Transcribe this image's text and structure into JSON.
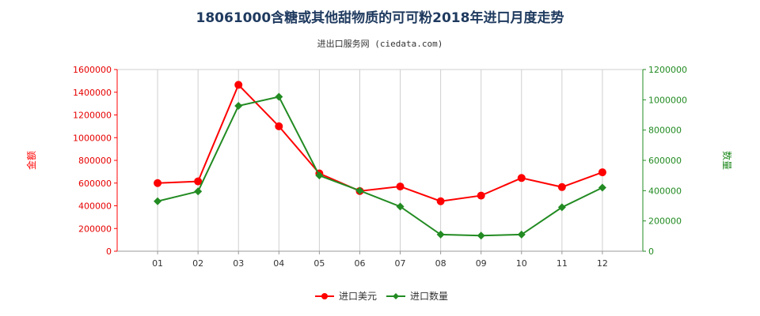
{
  "title": "18061000含糖或其他甜物质的可可粉2018年进口月度走势",
  "subtitle": "进出口服务网 (ciedata.com)",
  "colors": {
    "series_usd": "#ff0000",
    "series_qty": "#228b22"
  },
  "chart_data": {
    "type": "line",
    "categories": [
      "01",
      "02",
      "03",
      "04",
      "05",
      "06",
      "07",
      "08",
      "09",
      "10",
      "11",
      "12"
    ],
    "ylabel_left": "金额",
    "ylabel_right": "数量",
    "ylim_left": [
      0,
      1600000
    ],
    "ylim_right": [
      0,
      1200000
    ],
    "yticks_left": [
      "0",
      "200000",
      "400000",
      "600000",
      "800000",
      "1000000",
      "1200000",
      "1400000",
      "1600000"
    ],
    "yticks_right": [
      "0",
      "200000",
      "400000",
      "600000",
      "800000",
      "1000000",
      "1200000"
    ],
    "grid": "vertical",
    "legend_position": "bottom",
    "series": [
      {
        "name": "进口美元",
        "axis": "left",
        "values": [
          600000,
          615000,
          1465000,
          1100000,
          685000,
          530000,
          570000,
          440000,
          490000,
          645000,
          565000,
          695000
        ]
      },
      {
        "name": "进口数量",
        "axis": "right",
        "values": [
          330000,
          395000,
          960000,
          1020000,
          500000,
          400000,
          295000,
          110000,
          103000,
          110000,
          290000,
          420000
        ]
      }
    ]
  }
}
